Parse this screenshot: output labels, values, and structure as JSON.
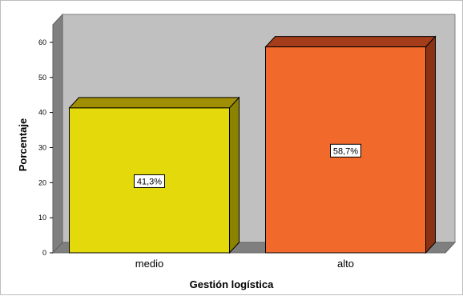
{
  "chart_data": {
    "type": "bar",
    "categories": [
      "medio",
      "alto"
    ],
    "values": [
      41.3,
      58.7
    ],
    "data_labels": [
      "41,3%",
      "58,7%"
    ],
    "xlabel": "Gestión logística",
    "ylabel": "Porcentaje",
    "ylim": [
      0,
      65
    ],
    "yticks": [
      0,
      10,
      20,
      30,
      40,
      50,
      60
    ],
    "grid": false,
    "legend": "none",
    "style": "3d",
    "colors": {
      "bar_fronts": [
        "#e4d90a",
        "#f2692c"
      ],
      "bar_tops": [
        "#a08f05",
        "#a63d1a"
      ],
      "bar_sides": [
        "#8b8300",
        "#8a3214"
      ],
      "back_wall": "#c0c0c0",
      "floor": "#7f7f7f",
      "side_wall": "#808080"
    }
  }
}
